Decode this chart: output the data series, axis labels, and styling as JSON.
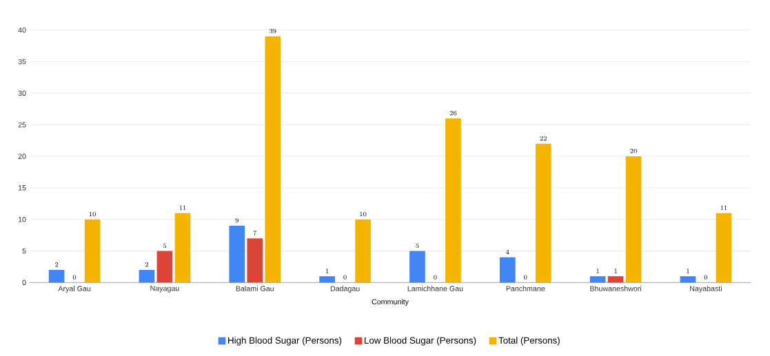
{
  "chart_data": {
    "type": "bar",
    "xlabel": "Community",
    "categories": [
      "Aryal Gau",
      "Nayagau",
      "Balami Gau",
      "Dadagau",
      "Lamichhane Gau",
      "Panchmane",
      "Bhuwaneshwori",
      "Nayabasti"
    ],
    "series": [
      {
        "name": "High Blood Sugar (Persons)",
        "color": "#4285f4",
        "values": [
          2,
          2,
          9,
          1,
          5,
          4,
          1,
          1
        ]
      },
      {
        "name": "Low Blood Sugar (Persons)",
        "color": "#db4437",
        "values": [
          0,
          5,
          7,
          0,
          0,
          0,
          1,
          0
        ]
      },
      {
        "name": "Total (Persons)",
        "color": "#f4b400",
        "values": [
          10,
          11,
          39,
          10,
          26,
          22,
          20,
          11
        ]
      }
    ],
    "ylim": [
      0,
      40
    ],
    "yticks": [
      0,
      5,
      10,
      15,
      20,
      25,
      30,
      35,
      40
    ],
    "grid": "y",
    "legend": "bottom",
    "data_labels": true
  }
}
